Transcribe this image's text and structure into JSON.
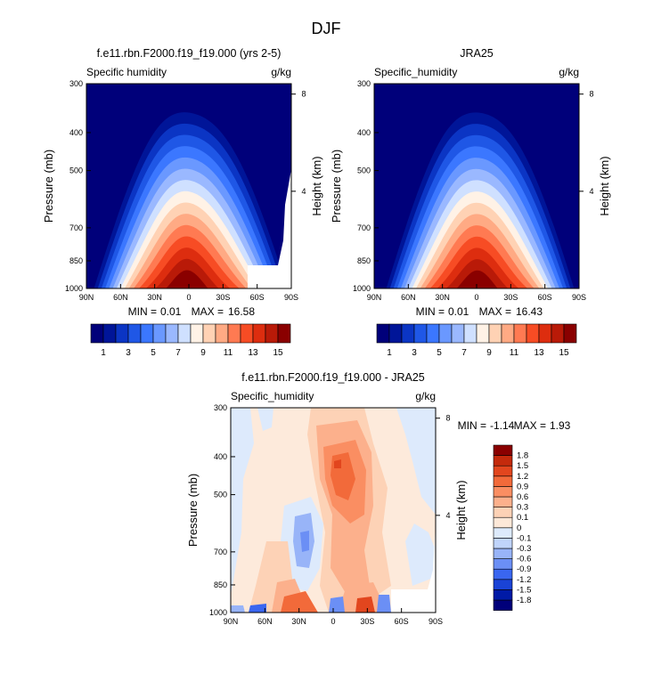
{
  "figure_title": "DJF",
  "chart_data": [
    {
      "type": "heatmap",
      "title": "f.e11.rbn.F2000.f19_f19.000 (yrs 2-5)",
      "left_label": "Specific humidity",
      "right_label": "g/kg",
      "ylabel": "Pressure (mb)",
      "ylabel_right": "Height (km)",
      "x_ticks": [
        "90N",
        "60N",
        "30N",
        "0",
        "30S",
        "60S",
        "90S"
      ],
      "y_ticks": [
        300,
        400,
        500,
        700,
        850,
        1000
      ],
      "y_right_ticks": [
        8,
        4
      ],
      "min_label": "MIN =",
      "min_value": "0.01",
      "max_label": "MAX =",
      "max_value": "16.58",
      "masked_region": "yes"
    },
    {
      "type": "heatmap",
      "title": "JRA25",
      "left_label": "Specific_humidity",
      "right_label": "g/kg",
      "ylabel": "Pressure (mb)",
      "ylabel_right": "Height (km)",
      "x_ticks": [
        "90N",
        "60N",
        "30N",
        "0",
        "30S",
        "60S",
        "90S"
      ],
      "y_ticks": [
        300,
        400,
        500,
        700,
        850,
        1000
      ],
      "y_right_ticks": [
        8,
        4
      ],
      "min_label": "MIN =",
      "min_value": "0.01",
      "max_label": "MAX =",
      "max_value": "16.43"
    },
    {
      "type": "heatmap",
      "title": "f.e11.rbn.F2000.f19_f19.000 - JRA25",
      "left_label": "Specific_humidity",
      "right_label": "g/kg",
      "ylabel": "Pressure (mb)",
      "ylabel_right": "Height (km)",
      "x_ticks": [
        "90N",
        "60N",
        "30N",
        "0",
        "30S",
        "60S",
        "90S"
      ],
      "y_ticks": [
        300,
        400,
        500,
        700,
        850,
        1000
      ],
      "y_right_ticks": [
        8,
        4
      ],
      "min_label": "MIN =",
      "min_value": "-1.14",
      "max_label": "MAX =",
      "max_value": "1.93"
    }
  ],
  "colorbar_abs": {
    "colors": [
      "#00007a",
      "#001598",
      "#0b35c4",
      "#1f57e6",
      "#3b77ff",
      "#6a98ff",
      "#9ab8ff",
      "#cfe0ff",
      "#fff2e6",
      "#ffd2b4",
      "#ffaa84",
      "#ff7a52",
      "#f74c24",
      "#dd2d0f",
      "#b91a08",
      "#8a0000"
    ],
    "tick_labels": [
      "1",
      "3",
      "5",
      "7",
      "9",
      "11",
      "13",
      "15"
    ]
  },
  "colorbar_diff": {
    "colors": [
      "#00007a",
      "#001aa6",
      "#1a43d6",
      "#3a66f0",
      "#6b8ff5",
      "#98b4f8",
      "#c0d4fb",
      "#ddeafc",
      "#fde8d8",
      "#fdd2b6",
      "#fcb08c",
      "#fa8e62",
      "#f26a3a",
      "#e2461e",
      "#c42a0c",
      "#8a0000"
    ],
    "tick_labels": [
      "-1.8",
      "-1.5",
      "-1.2",
      "-0.9",
      "-0.6",
      "-0.3",
      "-0.1",
      "0",
      "0.1",
      "0.3",
      "0.6",
      "0.9",
      "1.2",
      "1.5",
      "1.8"
    ]
  }
}
